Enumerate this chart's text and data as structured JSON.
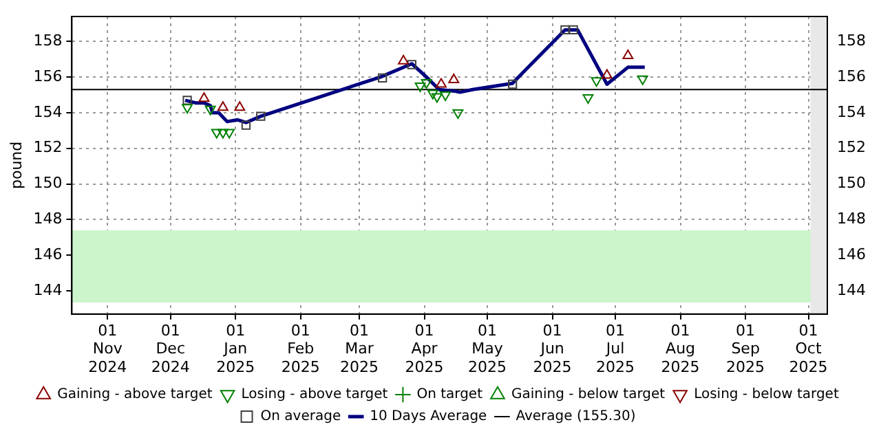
{
  "chart_data": {
    "type": "scatter",
    "ylabel": "pound",
    "xlim": [
      "2024-10-15",
      "2025-10-10"
    ],
    "xticks": [
      {
        "value": "2024-11-01",
        "label": "01 Nov 2024"
      },
      {
        "value": "2024-12-01",
        "label": "01 Dec 2024"
      },
      {
        "value": "2025-01-01",
        "label": "01 Jan 2025"
      },
      {
        "value": "2025-02-01",
        "label": "01 Feb 2025"
      },
      {
        "value": "2025-03-01",
        "label": "01 Mar 2025"
      },
      {
        "value": "2025-04-01",
        "label": "01 Apr 2025"
      },
      {
        "value": "2025-05-01",
        "label": "01 May 2025"
      },
      {
        "value": "2025-06-01",
        "label": "01 Jun 2025"
      },
      {
        "value": "2025-07-01",
        "label": "01 Jul 2025"
      },
      {
        "value": "2025-08-01",
        "label": "01 Aug 2025"
      },
      {
        "value": "2025-09-01",
        "label": "01 Sep 2025"
      },
      {
        "value": "2025-10-01",
        "label": "01 Oct 2025"
      }
    ],
    "ylim": [
      142.7,
      159.4
    ],
    "yticks": [
      144,
      146,
      148,
      150,
      152,
      154,
      156,
      158
    ],
    "y2lim": [
      142.7,
      159.4
    ],
    "y2ticks": [
      144,
      146,
      148,
      150,
      152,
      154,
      156,
      158
    ],
    "grid": true,
    "legend": "bottom",
    "bands": [
      {
        "axis": "y",
        "from": 143.35,
        "to": 147.4,
        "color": "#ccf5cc"
      },
      {
        "axis": "x",
        "from": "2025-10-02",
        "to": "2025-10-10",
        "color": "#e8e8e8"
      }
    ],
    "ref_lines": [
      {
        "axis": "y",
        "value": 155.3,
        "label": "Average (155.30)",
        "color": "#000000"
      }
    ],
    "series": [
      {
        "name": "Gaining - above target",
        "marker": "triangle",
        "color": "#8b0000",
        "x": [
          "2024-12-17",
          "2024-12-26",
          "2025-01-03",
          "2025-03-22",
          "2025-04-09",
          "2025-04-15",
          "2025-06-27",
          "2025-07-07"
        ],
        "values": [
          154.8,
          154.3,
          154.3,
          156.9,
          155.6,
          155.85,
          156.1,
          157.2
        ]
      },
      {
        "name": "Losing - above target",
        "marker": "triangle_down",
        "color": "#008000",
        "x": [
          "2024-12-09",
          "2024-12-20",
          "2024-12-23",
          "2024-12-26",
          "2024-12-29",
          "2025-03-30",
          "2025-04-02",
          "2025-04-05",
          "2025-04-07",
          "2025-04-11",
          "2025-04-17",
          "2025-06-18",
          "2025-06-22",
          "2025-07-14"
        ],
        "values": [
          154.3,
          154.2,
          152.9,
          152.9,
          152.9,
          155.5,
          155.7,
          155.1,
          154.9,
          155.0,
          154.0,
          154.85,
          155.8,
          155.9
        ]
      },
      {
        "name": "On target",
        "marker": "cross",
        "color": "#008000"
      },
      {
        "name": "Gaining - below target",
        "marker": "triangle",
        "color": "#008000"
      },
      {
        "name": "Losing - below target",
        "marker": "triangle_down",
        "color": "#8b0000"
      },
      {
        "name": "On average",
        "marker": "square",
        "color": "#404040",
        "x": [
          "2024-12-09",
          "2025-01-06",
          "2025-01-13",
          "2025-03-12",
          "2025-03-26",
          "2025-05-13",
          "2025-06-07",
          "2025-06-11"
        ],
        "values": [
          154.7,
          153.3,
          153.8,
          155.95,
          156.7,
          155.6,
          158.65,
          158.65
        ]
      },
      {
        "name": "10 Days Average",
        "type": "line",
        "marker": "none",
        "color": "#000080",
        "x": [
          "2024-12-08",
          "2024-12-13",
          "2024-12-17",
          "2024-12-20",
          "2024-12-21",
          "2024-12-24",
          "2024-12-28",
          "2025-01-02",
          "2025-01-06",
          "2025-01-13",
          "2025-03-11",
          "2025-03-26",
          "2025-04-02",
          "2025-04-08",
          "2025-04-16",
          "2025-04-18",
          "2025-04-24",
          "2025-05-13",
          "2025-05-15",
          "2025-06-07",
          "2025-06-13",
          "2025-06-27",
          "2025-07-07",
          "2025-07-15"
        ],
        "values": [
          154.7,
          154.55,
          154.55,
          154.4,
          154.0,
          154.0,
          153.5,
          153.6,
          153.45,
          153.8,
          156.0,
          156.75,
          156.0,
          155.3,
          155.2,
          155.15,
          155.3,
          155.65,
          155.9,
          158.65,
          158.65,
          155.6,
          156.55,
          156.55
        ]
      }
    ]
  }
}
